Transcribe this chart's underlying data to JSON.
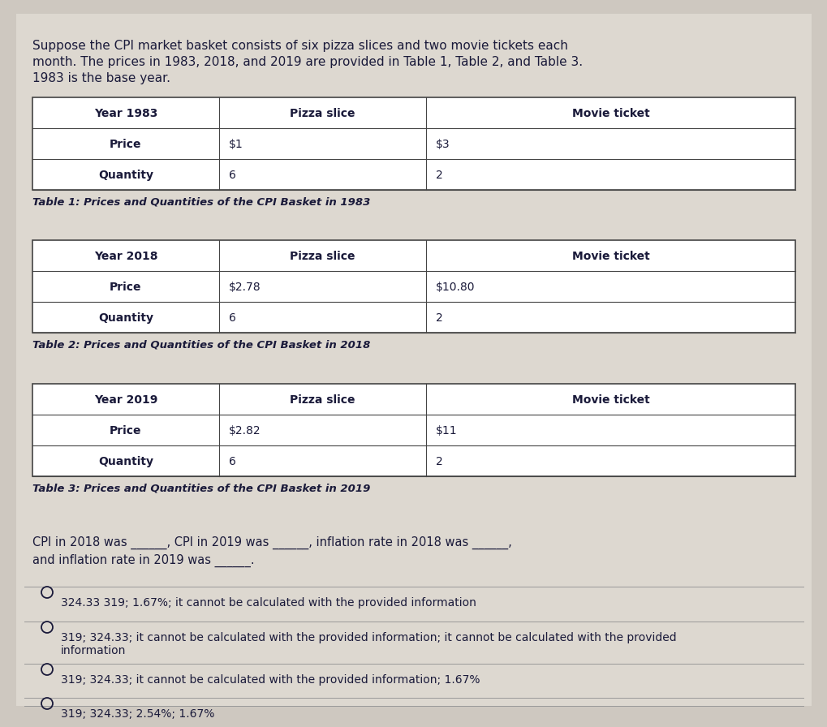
{
  "bg_color": "#cec8c0",
  "content_bg": "#ddd8d0",
  "table_border_color": "#444444",
  "intro_text_line1": "Suppose the CPI market basket consists of six pizza slices and two movie tickets each",
  "intro_text_line2": "month. The prices in 1983, 2018, and 2019 are provided in Table 1, Table 2, and Table 3.",
  "intro_text_line3": "1983 is the base year.",
  "table1": {
    "title": "Table 1: Prices and Quantities of the CPI Basket in 1983",
    "header": [
      "Year 1983",
      "Pizza slice",
      "Movie ticket"
    ],
    "rows": [
      [
        "Price",
        "$1",
        "$3"
      ],
      [
        "Quantity",
        "6",
        "2"
      ]
    ]
  },
  "table2": {
    "title": "Table 2: Prices and Quantities of the CPI Basket in 2018",
    "header": [
      "Year 2018",
      "Pizza slice",
      "Movie ticket"
    ],
    "rows": [
      [
        "Price",
        "$2.78",
        "$10.80"
      ],
      [
        "Quantity",
        "6",
        "2"
      ]
    ]
  },
  "table3": {
    "title": "Table 3: Prices and Quantities of the CPI Basket in 2019",
    "header": [
      "Year 2019",
      "Pizza slice",
      "Movie ticket"
    ],
    "rows": [
      [
        "Price",
        "$2.82",
        "$11"
      ],
      [
        "Quantity",
        "6",
        "2"
      ]
    ]
  },
  "question_line1": "CPI in 2018 was ______, CPI in 2019 was ______, inflation rate in 2018 was ______,",
  "question_line2": "and inflation rate in 2019 was ______.",
  "choices": [
    "324.33 319; 1.67%; it cannot be calculated with the provided information",
    "319; 324.33; it cannot be calculated with the provided information; it cannot be calculated with the provided\ninformation",
    "319; 324.33; it cannot be calculated with the provided information; 1.67%",
    "319; 324.33; 2.54%; 1.67%"
  ],
  "selected_choice": -1,
  "text_color": "#1a1a3a",
  "header_font_size": 10,
  "body_font_size": 10,
  "intro_font_size": 11,
  "caption_font_size": 9.5,
  "question_font_size": 10.5,
  "choice_font_size": 10
}
